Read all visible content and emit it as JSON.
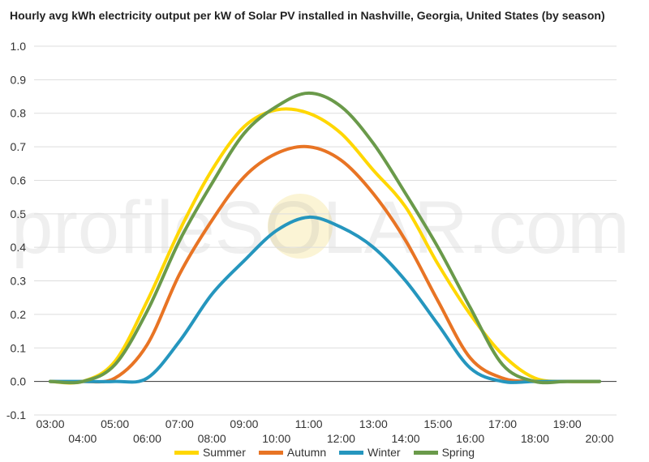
{
  "chart_data": {
    "type": "line",
    "title": "Hourly avg kWh electricity output per kW of Solar PV installed in Nashville, Georgia, United States (by season)",
    "watermark": "profileSOLAR.com",
    "x": [
      "03:00",
      "04:00",
      "05:00",
      "06:00",
      "07:00",
      "08:00",
      "09:00",
      "10:00",
      "11:00",
      "12:00",
      "13:00",
      "14:00",
      "15:00",
      "16:00",
      "17:00",
      "18:00",
      "19:00",
      "20:00"
    ],
    "x_label_row": [
      "top",
      "bottom",
      "top",
      "bottom",
      "top",
      "bottom",
      "top",
      "bottom",
      "top",
      "bottom",
      "top",
      "bottom",
      "top",
      "bottom",
      "top",
      "bottom",
      "top",
      "bottom"
    ],
    "xlabel": "",
    "ylabel": "",
    "ylim": [
      -0.1,
      1.0
    ],
    "yticks": [
      "-0.1",
      "0.0",
      "0.1",
      "0.2",
      "0.3",
      "0.4",
      "0.5",
      "0.6",
      "0.7",
      "0.8",
      "0.9",
      "1.0"
    ],
    "grid": true,
    "legend": "bottom",
    "series": [
      {
        "name": "Summer",
        "color": "#FFD700",
        "values": [
          0.0,
          0.0,
          0.06,
          0.24,
          0.45,
          0.63,
          0.76,
          0.81,
          0.8,
          0.74,
          0.63,
          0.52,
          0.35,
          0.2,
          0.08,
          0.01,
          0.0,
          0.0
        ]
      },
      {
        "name": "Autumn",
        "color": "#E87424",
        "values": [
          0.0,
          0.0,
          0.01,
          0.11,
          0.32,
          0.48,
          0.61,
          0.68,
          0.7,
          0.66,
          0.56,
          0.42,
          0.24,
          0.07,
          0.01,
          0.0,
          0.0,
          0.0
        ]
      },
      {
        "name": "Winter",
        "color": "#2596BE",
        "values": [
          0.0,
          0.0,
          0.0,
          0.01,
          0.12,
          0.26,
          0.36,
          0.45,
          0.49,
          0.46,
          0.4,
          0.3,
          0.17,
          0.04,
          0.0,
          0.0,
          0.0,
          0.0
        ]
      },
      {
        "name": "Spring",
        "color": "#6A9A4A",
        "values": [
          0.0,
          0.0,
          0.05,
          0.21,
          0.42,
          0.59,
          0.74,
          0.82,
          0.86,
          0.82,
          0.71,
          0.56,
          0.4,
          0.22,
          0.05,
          0.0,
          0.0,
          0.0
        ]
      }
    ],
    "axis_line_color": "#333333",
    "grid_color": "#DDDDDD"
  }
}
